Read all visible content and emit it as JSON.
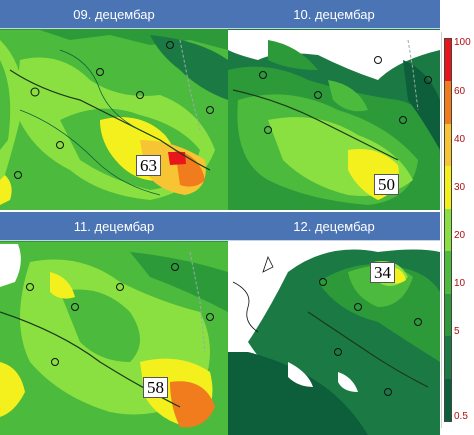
{
  "panels": [
    {
      "date": "09. децембар",
      "max_value": "63"
    },
    {
      "date": "10. децембар",
      "max_value": "50"
    },
    {
      "date": "11. децембар",
      "max_value": "58"
    },
    {
      "date": "12. децембар",
      "max_value": "34"
    }
  ],
  "legend": {
    "ticks": [
      "100",
      "60",
      "40",
      "30",
      "20",
      "10",
      "5",
      "0.5"
    ],
    "colors": [
      "#e8151b",
      "#f17c1d",
      "#f7c533",
      "#f4f01e",
      "#8be041",
      "#4cba3c",
      "#2d9a3a",
      "#1b7a44",
      "#0d5e3a"
    ]
  },
  "colors": {
    "title_bar": "#4a74b4",
    "no_data": "#ffffff"
  }
}
